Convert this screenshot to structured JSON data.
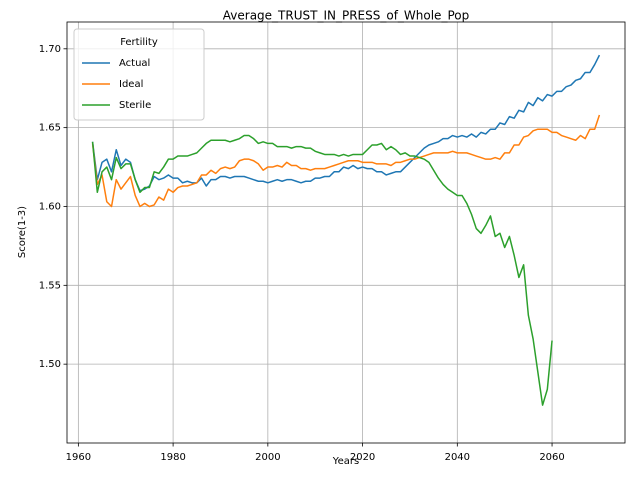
{
  "chart_data": {
    "type": "line",
    "title": "Average_TRUST_IN_PRESS_of_Whole_Pop",
    "x_label": "Years",
    "y_label": "Score(1-3)",
    "legend_title": "Fertility",
    "legend": "upper left",
    "grid": true,
    "xlim": [
      1957.6,
      2075.4
    ],
    "ylim": [
      1.45,
      1.717
    ],
    "xticks": [
      1960,
      1980,
      2000,
      2020,
      2040,
      2060
    ],
    "yticks": [
      {
        "value": 1.5,
        "label": "1.50"
      },
      {
        "value": 1.55,
        "label": "1.55"
      },
      {
        "value": 1.6,
        "label": "1.60"
      },
      {
        "value": 1.65,
        "label": "1.65"
      },
      {
        "value": 1.7,
        "label": "1.70"
      }
    ],
    "x": [
      1963,
      1964,
      1965,
      1966,
      1967,
      1968,
      1969,
      1970,
      1971,
      1972,
      1973,
      1974,
      1975,
      1976,
      1977,
      1978,
      1979,
      1980,
      1981,
      1982,
      1983,
      1984,
      1985,
      1986,
      1987,
      1988,
      1989,
      1990,
      1991,
      1992,
      1993,
      1994,
      1995,
      1996,
      1997,
      1998,
      1999,
      2000,
      2001,
      2002,
      2003,
      2004,
      2005,
      2006,
      2007,
      2008,
      2009,
      2010,
      2011,
      2012,
      2013,
      2014,
      2015,
      2016,
      2017,
      2018,
      2019,
      2020,
      2021,
      2022,
      2023,
      2024,
      2025,
      2026,
      2027,
      2028,
      2029,
      2030,
      2031,
      2032,
      2033,
      2034,
      2035,
      2036,
      2037,
      2038,
      2039,
      2040,
      2041,
      2042,
      2043,
      2044,
      2045,
      2046,
      2047,
      2048,
      2049,
      2050,
      2051,
      2052,
      2053,
      2054,
      2055,
      2056,
      2057,
      2058,
      2059,
      2060,
      2061,
      2062,
      2063,
      2064,
      2065,
      2066,
      2067,
      2068,
      2069,
      2070
    ],
    "series": [
      {
        "name": "Actual",
        "color": "#1f77b4",
        "values": [
          1.641,
          1.617,
          1.628,
          1.63,
          1.622,
          1.636,
          1.626,
          1.63,
          1.628,
          1.617,
          1.61,
          1.611,
          1.613,
          1.619,
          1.617,
          1.618,
          1.62,
          1.618,
          1.618,
          1.615,
          1.616,
          1.615,
          1.615,
          1.618,
          1.613,
          1.617,
          1.617,
          1.619,
          1.619,
          1.618,
          1.619,
          1.619,
          1.619,
          1.618,
          1.617,
          1.616,
          1.616,
          1.615,
          1.616,
          1.617,
          1.616,
          1.617,
          1.617,
          1.616,
          1.615,
          1.616,
          1.616,
          1.618,
          1.618,
          1.619,
          1.619,
          1.622,
          1.622,
          1.625,
          1.624,
          1.626,
          1.624,
          1.625,
          1.624,
          1.624,
          1.622,
          1.622,
          1.62,
          1.621,
          1.622,
          1.622,
          1.625,
          1.628,
          1.631,
          1.634,
          1.637,
          1.639,
          1.64,
          1.641,
          1.643,
          1.643,
          1.645,
          1.644,
          1.645,
          1.644,
          1.646,
          1.644,
          1.647,
          1.646,
          1.649,
          1.649,
          1.653,
          1.652,
          1.657,
          1.656,
          1.661,
          1.66,
          1.666,
          1.664,
          1.669,
          1.667,
          1.671,
          1.67,
          1.673,
          1.673,
          1.676,
          1.677,
          1.68,
          1.681,
          1.685,
          1.685,
          1.69,
          1.696
        ]
      },
      {
        "name": "Ideal",
        "color": "#ff7f0e",
        "values": [
          1.64,
          1.614,
          1.62,
          1.603,
          1.6,
          1.617,
          1.611,
          1.615,
          1.619,
          1.607,
          1.6,
          1.602,
          1.6,
          1.601,
          1.606,
          1.604,
          1.611,
          1.609,
          1.612,
          1.613,
          1.613,
          1.614,
          1.615,
          1.62,
          1.62,
          1.623,
          1.621,
          1.624,
          1.625,
          1.624,
          1.625,
          1.629,
          1.63,
          1.63,
          1.629,
          1.627,
          1.623,
          1.625,
          1.625,
          1.626,
          1.625,
          1.628,
          1.626,
          1.626,
          1.624,
          1.624,
          1.623,
          1.624,
          1.624,
          1.624,
          1.625,
          1.626,
          1.627,
          1.628,
          1.629,
          1.629,
          1.629,
          1.628,
          1.628,
          1.628,
          1.627,
          1.627,
          1.627,
          1.626,
          1.628,
          1.628,
          1.629,
          1.63,
          1.63,
          1.631,
          1.632,
          1.633,
          1.634,
          1.634,
          1.634,
          1.634,
          1.635,
          1.634,
          1.634,
          1.634,
          1.633,
          1.632,
          1.631,
          1.63,
          1.63,
          1.631,
          1.63,
          1.634,
          1.634,
          1.639,
          1.639,
          1.644,
          1.645,
          1.648,
          1.649,
          1.649,
          1.649,
          1.647,
          1.647,
          1.645,
          1.644,
          1.643,
          1.642,
          1.645,
          1.643,
          1.649,
          1.649,
          1.658
        ]
      },
      {
        "name": "Sterile",
        "color": "#2ca02c",
        "values": [
          1.641,
          1.609,
          1.622,
          1.625,
          1.617,
          1.631,
          1.624,
          1.627,
          1.627,
          1.617,
          1.609,
          1.612,
          1.612,
          1.622,
          1.621,
          1.625,
          1.63,
          1.63,
          1.632,
          1.632,
          1.632,
          1.633,
          1.634,
          1.637,
          1.64,
          1.642,
          1.642,
          1.642,
          1.642,
          1.641,
          1.642,
          1.643,
          1.645,
          1.645,
          1.643,
          1.64,
          1.641,
          1.64,
          1.64,
          1.638,
          1.638,
          1.638,
          1.637,
          1.638,
          1.638,
          1.637,
          1.637,
          1.635,
          1.634,
          1.633,
          1.633,
          1.633,
          1.632,
          1.633,
          1.632,
          1.633,
          1.633,
          1.633,
          1.636,
          1.639,
          1.639,
          1.64,
          1.636,
          1.638,
          1.636,
          1.633,
          1.634,
          1.632,
          1.632,
          1.631,
          1.63,
          1.628,
          1.623,
          1.618,
          1.614,
          1.611,
          1.609,
          1.607,
          1.607,
          1.602,
          1.595,
          1.586,
          1.583,
          1.588,
          1.594,
          1.581,
          1.583,
          1.574,
          1.581,
          1.569,
          1.555,
          1.563,
          1.531,
          1.516,
          1.495,
          1.474,
          1.484,
          1.515,
          null,
          null,
          null,
          null,
          null,
          null,
          null,
          null,
          null,
          null
        ]
      }
    ]
  }
}
